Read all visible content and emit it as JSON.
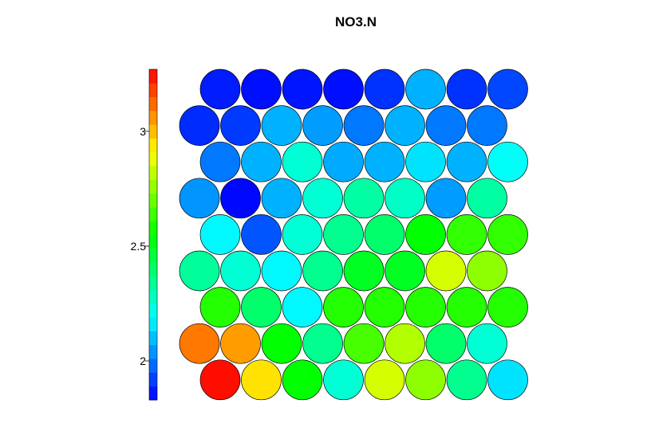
{
  "chart_data": {
    "type": "heatmap",
    "subtype": "som-hexagonal-property-map",
    "title": "NO3.N",
    "grid": {
      "columns": 8,
      "rows": 9,
      "topology": "hexagonal"
    },
    "color_scale": {
      "palette": "rainbow-blue-to-red",
      "range": [
        1.83,
        3.27
      ],
      "ticks": [
        2,
        2.5,
        3
      ],
      "tick_labels": [
        "2",
        "2.5",
        "3"
      ],
      "legend_position": "left"
    },
    "values_top_to_bottom": [
      [
        1.87,
        1.85,
        1.86,
        1.85,
        1.9,
        2.08,
        1.9,
        1.93
      ],
      [
        1.89,
        1.91,
        2.08,
        2.05,
        2.0,
        2.08,
        2.0,
        2.0
      ],
      [
        2.0,
        2.08,
        2.25,
        2.07,
        2.08,
        2.15,
        2.08,
        2.2
      ],
      [
        2.04,
        1.84,
        2.08,
        2.25,
        2.32,
        2.27,
        2.05,
        2.32
      ],
      [
        2.18,
        1.95,
        2.25,
        2.35,
        2.4,
        2.55,
        2.62,
        2.62
      ],
      [
        2.33,
        2.25,
        2.18,
        2.35,
        2.5,
        2.5,
        2.85,
        2.75
      ],
      [
        2.6,
        2.4,
        2.18,
        2.6,
        2.6,
        2.6,
        2.6,
        2.6
      ],
      [
        3.1,
        3.05,
        2.55,
        2.35,
        2.65,
        2.8,
        2.4,
        2.25
      ],
      [
        3.25,
        2.95,
        2.55,
        2.25,
        2.85,
        2.75,
        2.35,
        2.15
      ]
    ]
  }
}
